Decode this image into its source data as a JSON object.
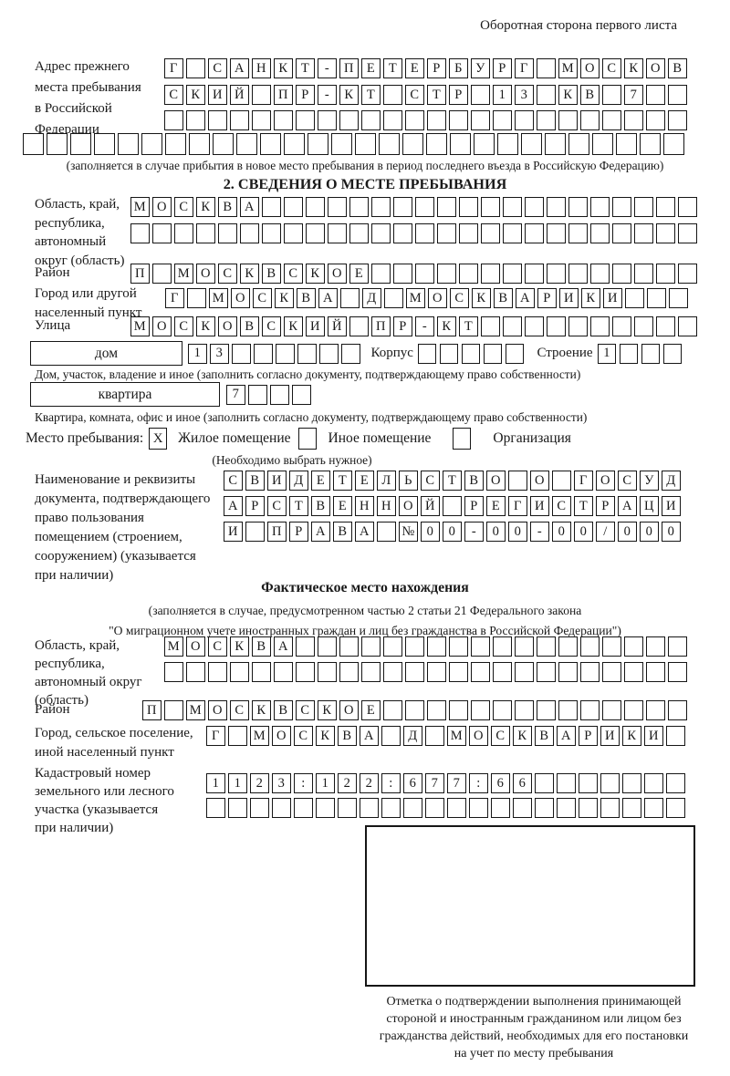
{
  "corner_note": "Оборотная сторона первого листа",
  "prev_address": {
    "label_lines": [
      "Адрес прежнего",
      "места пребывания",
      "в Российской",
      "Федерации"
    ],
    "row1": {
      "len": 24,
      "text": "Г САНКТ-ПЕТЕРБУРГ МОСКОВ"
    },
    "row2": {
      "len": 24,
      "text": "СКИЙ ПР-КТ СТР 13 КВ 7"
    },
    "row3": {
      "len": 24,
      "text": ""
    },
    "row4": {
      "len": 28,
      "text": ""
    },
    "note": "(заполняется в случае прибытия в новое место пребывания в период последнего въезда в Российскую Федерацию)"
  },
  "section2": {
    "title": "2. СВЕДЕНИЯ О МЕСТЕ ПРЕБЫВАНИЯ",
    "region_label_lines": [
      "Область, край,",
      "республика,",
      "автономный",
      "округ (область)"
    ],
    "region_row1": {
      "len": 26,
      "text": "МОСКВА"
    },
    "region_row2": {
      "len": 26,
      "text": ""
    },
    "district_label": "Район",
    "district_row": {
      "len": 26,
      "text": "П МОСКВСКОЕ"
    },
    "city_label_lines": [
      "Город или другой",
      "населенный пункт"
    ],
    "city_row": {
      "len": 24,
      "text": "Г МОСКВА Д МОСКВАРИКИ"
    },
    "street_label": "Улица",
    "street_row": {
      "len": 26,
      "text": "МОСКОВСКИЙ ПР-КТ"
    },
    "house_label": "дом",
    "house_row": {
      "len": 8,
      "text": "13"
    },
    "korpus_label": "Корпус",
    "korpus_row": {
      "len": 5,
      "text": ""
    },
    "stroenie_label": "Строение",
    "stroenie_row": {
      "len": 4,
      "text": "1"
    },
    "house_note": "Дом, участок, владение и иное (заполнить согласно документу, подтверждающему право собственности)",
    "apartment_label": "квартира",
    "apartment_row": {
      "len": 4,
      "text": "7"
    },
    "apartment_note": "Квартира, комната, офис и иное (заполнить согласно документу, подтверждающему право собственности)",
    "stay_type": {
      "label": "Место пребывания:",
      "options": [
        {
          "label": "Жилое помещение",
          "mark": {
            "len": 1,
            "text": "X"
          }
        },
        {
          "label": "Иное помещение",
          "mark": {
            "len": 1,
            "text": ""
          }
        },
        {
          "label": "Организация",
          "mark": {
            "len": 1,
            "text": ""
          }
        }
      ],
      "note": "(Необходимо выбрать нужное)"
    },
    "doc_label_lines": [
      "Наименование и реквизиты",
      "документа, подтверждающего",
      "право пользования",
      "помещением (строением,",
      "сооружением) (указывается",
      "при наличии)"
    ],
    "doc_row1": {
      "len": 21,
      "text": "СВИДЕТЕЛЬСТВО О ГОСУД"
    },
    "doc_row2": {
      "len": 21,
      "text": "АРСТВЕННОЙ РЕГИСТРАЦИ"
    },
    "doc_row3": {
      "len": 21,
      "text": "И ПРАВА №00-00-00/000"
    }
  },
  "actual_location": {
    "title": "Фактическое место нахождения",
    "note_lines": [
      "(заполняется в случае, предусмотренном частью 2 статьи 21 Федерального закона",
      "\"О миграционном учете иностранных граждан и лиц без гражданства в Российской Федерации\")"
    ],
    "region_label_lines": [
      "Область, край,",
      "республика,",
      "автономный округ",
      "(область)"
    ],
    "region_row1": {
      "len": 24,
      "text": "МОСКВА"
    },
    "region_row2": {
      "len": 24,
      "text": ""
    },
    "district_label": "Район",
    "district_row": {
      "len": 25,
      "text": "П МОСКВСКОЕ"
    },
    "city_label_lines": [
      "Город, сельское поселение,",
      "иной населенный пункт"
    ],
    "city_row": {
      "len": 22,
      "text": "Г МОСКВА Д МОСКВАРИКИ"
    },
    "cadastre_label_lines": [
      "Кадастровый номер",
      "земельного или лесного",
      "участка (указывается",
      "при наличии)"
    ],
    "cadastre_row1": {
      "len": 22,
      "text": "1123:122:677:66"
    },
    "cadastre_row2": {
      "len": 22,
      "text": ""
    }
  },
  "confirmation": {
    "caption_lines": [
      "Отметка о подтверждении выполнения принимающей",
      "стороной и иностранным гражданином или лицом без",
      "гражданства действий, необходимых для его постановки",
      "на учет по месту пребывания"
    ]
  }
}
